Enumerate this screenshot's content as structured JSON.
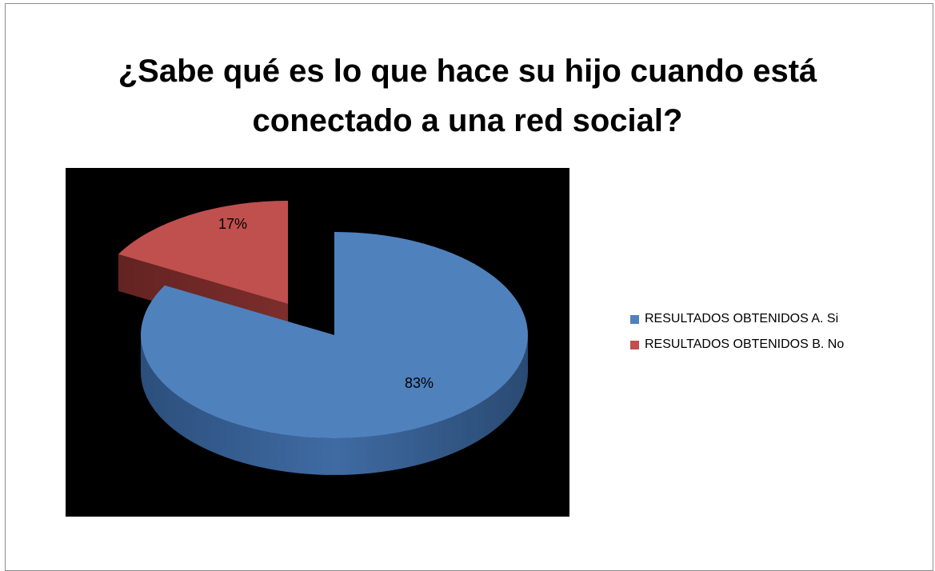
{
  "chart_data": {
    "type": "pie",
    "title": "¿Sabe qué es lo que hace su hijo cuando está conectado a una red social?",
    "title_lines": [
      "¿Sabe qué es lo que hace su hijo cuando está",
      "conectado a una red social?"
    ],
    "three_d": true,
    "exploded": true,
    "legend_position": "right",
    "slices": [
      {
        "label": "RESULTADOS OBTENIDOS A. Si",
        "value": 83,
        "data_label": "83%",
        "color": "#4f81bd"
      },
      {
        "label": "RESULTADOS OBTENIDOS B. No",
        "value": 17,
        "data_label": "17%",
        "color": "#c0504d"
      }
    ]
  }
}
